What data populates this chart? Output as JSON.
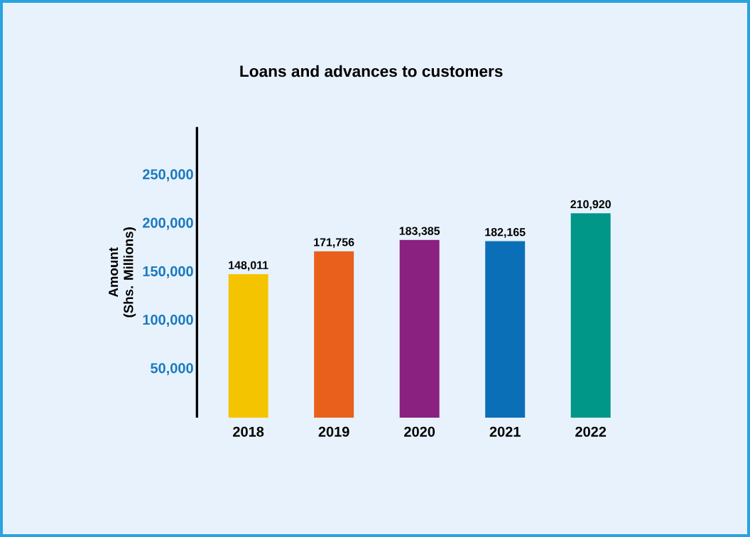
{
  "chart_data": {
    "type": "bar",
    "title": "Loans and advances to customers",
    "ylabel": "Amount\n(Shs. Millions)",
    "categories": [
      "2018",
      "2019",
      "2020",
      "2021",
      "2022"
    ],
    "values": [
      148011,
      171756,
      183385,
      182165,
      210920
    ],
    "value_labels": [
      "148,011",
      "171,756",
      "183,385",
      "182,165",
      "210,920"
    ],
    "colors": [
      "#f5c400",
      "#e8601c",
      "#8a2080",
      "#0b6fb8",
      "#009688"
    ],
    "ylim": [
      0,
      300000
    ],
    "yticks": [
      {
        "value": 50000,
        "label": "50,000"
      },
      {
        "value": 100000,
        "label": "100,000"
      },
      {
        "value": 150000,
        "label": "150,000"
      },
      {
        "value": 200000,
        "label": "200,000"
      },
      {
        "value": 250000,
        "label": "250,000"
      }
    ],
    "grid": false
  }
}
